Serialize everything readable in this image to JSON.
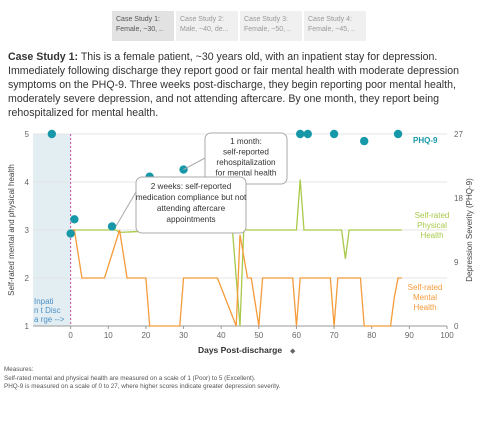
{
  "tabs": [
    {
      "line1": "Case Study 1:",
      "line2": "Female, ~30, ..",
      "active": true
    },
    {
      "line1": "Case Study 2:",
      "line2": "Male, ~40, de...",
      "active": false
    },
    {
      "line1": "Case Study 3:",
      "line2": "Female, ~50, ..",
      "active": false
    },
    {
      "line1": "Case Study 4:",
      "line2": "Female, ~45, ..",
      "active": false
    }
  ],
  "description": {
    "lead": "Case Study 1:",
    "text": " This is a female patient, ~30 years old, with an inpatient stay for depression. Immediately following discharge they report good or fair mental health with moderate depression symptoms on the PHQ-9. Three weeks post-discharge, they begin reporting poor mental health, moderately severe depression, and not attending aftercare.  By one month, they report being rehospitalized for mental health."
  },
  "chart_data": {
    "type": "line",
    "xlabel": "Days Post-discharge",
    "ylabel_left": "Self-rated mental and physical health",
    "ylabel_right": "Depression Severity (PHQ-9)",
    "xlim": [
      -10,
      100
    ],
    "ylim_left": [
      1,
      5
    ],
    "ylim_right": [
      0,
      27
    ],
    "x_ticks": [
      0,
      10,
      20,
      30,
      40,
      50,
      60,
      70,
      80,
      90,
      100
    ],
    "y_ticks_left": [
      1,
      2,
      3,
      4,
      5
    ],
    "y_ticks_right": [
      0,
      9,
      18,
      27
    ],
    "inpatient_label": "Inpation t Discha rge -->",
    "series": [
      {
        "name": "Self-rated Physical Health",
        "color": "#a9c94a",
        "axis": "left",
        "x": [
          0,
          1,
          12,
          13,
          27,
          28,
          43,
          44,
          45,
          46,
          59,
          60,
          61,
          62,
          71,
          72,
          73,
          74,
          86,
          87,
          88
        ],
        "y": [
          3,
          3,
          3,
          2.95,
          3,
          3,
          3,
          2,
          1,
          3,
          3,
          3,
          4.05,
          3,
          3,
          3,
          2.4,
          3,
          3,
          3,
          3
        ]
      },
      {
        "name": "Self-rated Mental Health",
        "color": "#f59b3a",
        "axis": "left",
        "x": [
          0,
          1,
          3,
          9,
          11,
          13,
          15,
          20,
          21,
          29,
          30,
          38,
          39,
          44,
          45,
          47,
          48,
          50,
          51,
          59,
          60,
          61,
          62,
          69,
          70,
          71,
          72,
          77,
          78,
          85,
          86,
          87,
          88
        ],
        "y": [
          3,
          3,
          2,
          2,
          2.5,
          3,
          2,
          2,
          1,
          1,
          2,
          2,
          2,
          1,
          2.9,
          2,
          2,
          1,
          2,
          2,
          1,
          2,
          2,
          2,
          1,
          2,
          2,
          2,
          1,
          1,
          1.6,
          2,
          2
        ]
      },
      {
        "name": "PHQ-9",
        "color": "#1798a8",
        "axis": "right",
        "x": [
          -5,
          0,
          1,
          11,
          21,
          30,
          61,
          63,
          70,
          78,
          87
        ],
        "y": [
          27,
          13,
          15,
          14,
          21,
          22,
          27,
          27,
          27,
          26,
          27
        ]
      }
    ],
    "annotations": [
      {
        "x": 12,
        "lines": [
          "2 weeks: self-reported",
          "medication compliance but not",
          "attending aftercare",
          "appointments"
        ]
      },
      {
        "x": 30,
        "lines": [
          "1 month:",
          "self-reported",
          "rehospitalization",
          "for mental health"
        ]
      }
    ],
    "reference_line": {
      "x": 0,
      "color": "#c64aa0"
    }
  },
  "footnote": [
    "Measures:",
    "Self-rated mental and physical health are measured on a scale of 1 (Poor) to 5 (Excellent).",
    "PHQ-9 is measured on a scale of 0 to 27, where higher scores indicate greater depression severity."
  ],
  "colors": {
    "grid": "#e6e6e6",
    "shade": "#e3eef2"
  }
}
